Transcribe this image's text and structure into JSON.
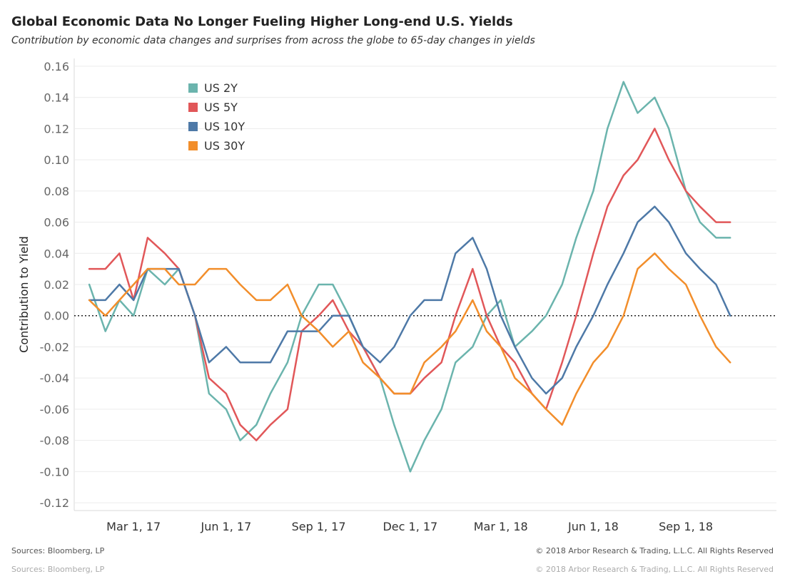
{
  "title": "Global Economic Data No Longer Fueling Higher Long-end U.S. Yields",
  "subtitle": "Contribution by economic data changes and surprises from across the globe to 65-day changes in yields",
  "footer": {
    "source": "Sources: Bloomberg, LP",
    "copyright": "© 2018 Arbor Research & Trading, L.L.C. All Rights Reserved"
  },
  "chart_data": {
    "type": "line",
    "ylabel": "Contribution to Yield",
    "xlabel": "",
    "ylim": [
      -0.125,
      0.165
    ],
    "y_ticks": [
      0.16,
      0.14,
      0.12,
      0.1,
      0.08,
      0.06,
      0.04,
      0.02,
      0.0,
      -0.02,
      -0.04,
      -0.06,
      -0.08,
      -0.1,
      -0.12
    ],
    "y_tick_labels": [
      "0.16",
      "0.14",
      "0.12",
      "0.10",
      "0.08",
      "0.06",
      "0.04",
      "0.02",
      "0.00",
      "-0.02",
      "-0.04",
      "-0.06",
      "-0.08",
      "-0.10",
      "-0.12"
    ],
    "x_range": [
      "2017-01-01",
      "2018-11-30"
    ],
    "x_ticks": [
      {
        "date": "2017-03-01",
        "label": "Mar 1, 17"
      },
      {
        "date": "2017-06-01",
        "label": "Jun 1, 17"
      },
      {
        "date": "2017-09-01",
        "label": "Sep 1, 17"
      },
      {
        "date": "2017-12-01",
        "label": "Dec 1, 17"
      },
      {
        "date": "2018-03-01",
        "label": "Mar 1, 18"
      },
      {
        "date": "2018-06-01",
        "label": "Jun 1, 18"
      },
      {
        "date": "2018-09-01",
        "label": "Sep 1, 18"
      }
    ],
    "zero_line": "dotted",
    "grid": "horizontal",
    "legend_position": "top-left",
    "x": [
      "2017-01-16",
      "2017-02-01",
      "2017-02-15",
      "2017-03-01",
      "2017-03-15",
      "2017-04-01",
      "2017-04-15",
      "2017-05-01",
      "2017-05-15",
      "2017-06-01",
      "2017-06-15",
      "2017-07-01",
      "2017-07-15",
      "2017-08-01",
      "2017-08-15",
      "2017-09-01",
      "2017-09-15",
      "2017-10-01",
      "2017-10-15",
      "2017-11-01",
      "2017-11-15",
      "2017-12-01",
      "2017-12-15",
      "2018-01-01",
      "2018-01-15",
      "2018-02-01",
      "2018-02-15",
      "2018-03-01",
      "2018-03-15",
      "2018-04-01",
      "2018-04-15",
      "2018-05-01",
      "2018-05-15",
      "2018-06-01",
      "2018-06-15",
      "2018-07-01",
      "2018-07-15",
      "2018-08-01",
      "2018-08-15",
      "2018-09-01",
      "2018-09-15",
      "2018-10-01",
      "2018-10-15"
    ],
    "series": [
      {
        "name": "US 2Y",
        "color": "#6bb4ad",
        "values": [
          0.02,
          -0.01,
          0.01,
          0.0,
          0.03,
          0.02,
          0.03,
          0.0,
          -0.05,
          -0.06,
          -0.08,
          -0.07,
          -0.05,
          -0.03,
          0.0,
          0.02,
          0.02,
          0.0,
          -0.02,
          -0.04,
          -0.07,
          -0.1,
          -0.08,
          -0.06,
          -0.03,
          -0.02,
          0.0,
          0.01,
          -0.02,
          -0.01,
          0.0,
          0.02,
          0.05,
          0.08,
          0.12,
          0.15,
          0.13,
          0.14,
          0.12,
          0.08,
          0.06,
          0.05,
          0.05
        ]
      },
      {
        "name": "US 5Y",
        "color": "#e15759",
        "values": [
          0.03,
          0.03,
          0.04,
          0.01,
          0.05,
          0.04,
          0.03,
          0.0,
          -0.04,
          -0.05,
          -0.07,
          -0.08,
          -0.07,
          -0.06,
          -0.01,
          0.0,
          0.01,
          -0.01,
          -0.02,
          -0.04,
          -0.05,
          -0.05,
          -0.04,
          -0.03,
          0.0,
          0.03,
          0.0,
          -0.02,
          -0.03,
          -0.05,
          -0.06,
          -0.03,
          0.0,
          0.04,
          0.07,
          0.09,
          0.1,
          0.12,
          0.1,
          0.08,
          0.07,
          0.06,
          0.06
        ]
      },
      {
        "name": "US 10Y",
        "color": "#4e79a7",
        "values": [
          0.01,
          0.01,
          0.02,
          0.01,
          0.03,
          0.03,
          0.03,
          0.0,
          -0.03,
          -0.02,
          -0.03,
          -0.03,
          -0.03,
          -0.01,
          -0.01,
          -0.01,
          0.0,
          0.0,
          -0.02,
          -0.03,
          -0.02,
          0.0,
          0.01,
          0.01,
          0.04,
          0.05,
          0.03,
          0.0,
          -0.02,
          -0.04,
          -0.05,
          -0.04,
          -0.02,
          0.0,
          0.02,
          0.04,
          0.06,
          0.07,
          0.06,
          0.04,
          0.03,
          0.02,
          0.0
        ]
      },
      {
        "name": "US 30Y",
        "color": "#f28e2b",
        "values": [
          0.01,
          0.0,
          0.01,
          0.02,
          0.03,
          0.03,
          0.02,
          0.02,
          0.03,
          0.03,
          0.02,
          0.01,
          0.01,
          0.02,
          0.0,
          -0.01,
          -0.02,
          -0.01,
          -0.03,
          -0.04,
          -0.05,
          -0.05,
          -0.03,
          -0.02,
          -0.01,
          0.01,
          -0.01,
          -0.02,
          -0.04,
          -0.05,
          -0.06,
          -0.07,
          -0.05,
          -0.03,
          -0.02,
          0.0,
          0.03,
          0.04,
          0.03,
          0.02,
          0.0,
          -0.02,
          -0.03
        ]
      }
    ]
  }
}
